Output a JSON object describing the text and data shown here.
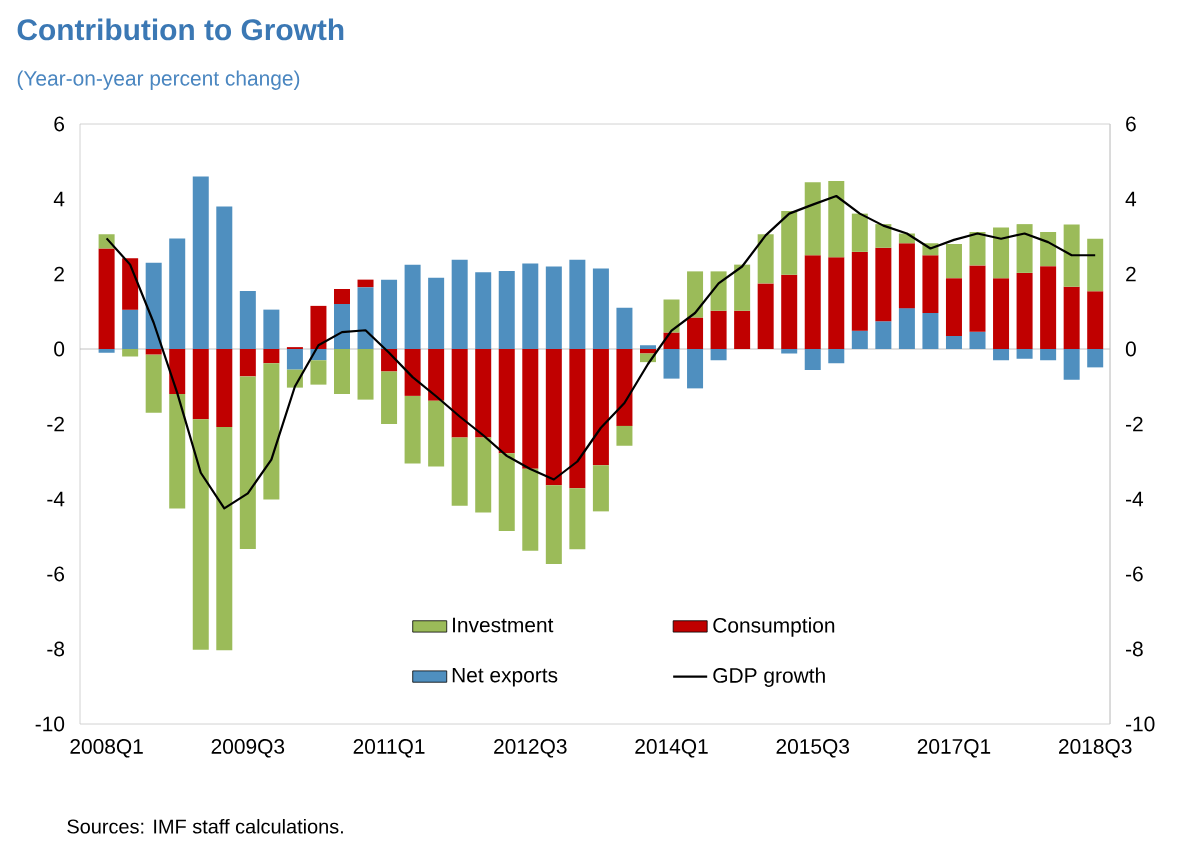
{
  "chart_data": {
    "type": "bar",
    "stacked": true,
    "title": "Contribution to Growth",
    "subtitle": "(Year-on-year percent change)",
    "categories": [
      "2008Q1",
      null,
      null,
      null,
      null,
      null,
      "2009Q3",
      null,
      null,
      null,
      null,
      null,
      "2011Q1",
      null,
      null,
      null,
      null,
      null,
      "2012Q3",
      null,
      null,
      null,
      null,
      null,
      "2014Q1",
      null,
      null,
      null,
      null,
      null,
      "2015Q3",
      null,
      null,
      null,
      null,
      null,
      "2017Q1",
      null,
      null,
      null,
      null,
      null,
      "2018Q3"
    ],
    "series": [
      {
        "name": "Net exports",
        "color": "#4f8fbf",
        "values": [
          -0.1,
          1.05,
          2.3,
          2.95,
          4.6,
          3.8,
          1.55,
          1.05,
          -0.55,
          -0.3,
          1.2,
          1.65,
          1.85,
          2.25,
          1.9,
          2.38,
          2.05,
          2.08,
          2.28,
          2.2,
          2.38,
          2.15,
          1.1,
          0.1,
          -0.79,
          -1.05,
          -0.3,
          0,
          0,
          -0.12,
          -0.56,
          -0.38,
          0.49,
          0.74,
          1.09,
          0.96,
          0.35,
          0.46,
          -0.3,
          -0.26,
          -0.3,
          -0.82,
          -0.49
        ]
      },
      {
        "name": "Consumption",
        "color": "#c00000",
        "values": [
          2.68,
          1.37,
          -0.15,
          -1.2,
          -1.87,
          -2.08,
          -0.73,
          -0.38,
          0.05,
          1.15,
          0.4,
          0.2,
          -0.6,
          -1.25,
          -1.38,
          -2.36,
          -2.36,
          -2.78,
          -3.19,
          -3.63,
          -3.71,
          -3.1,
          -2.05,
          -0.12,
          0.44,
          0.84,
          1.02,
          1.02,
          1.75,
          1.98,
          2.5,
          2.45,
          2.1,
          1.96,
          1.73,
          1.54,
          1.54,
          1.77,
          1.89,
          2.03,
          2.21,
          1.66,
          1.54
        ]
      },
      {
        "name": "Investment",
        "color": "#9bbb59",
        "values": [
          0.38,
          -0.2,
          -1.55,
          -3.05,
          -6.15,
          -5.95,
          -4.6,
          -3.63,
          -0.48,
          -0.65,
          -1.2,
          -1.35,
          -1.4,
          -1.8,
          -1.75,
          -1.82,
          -2.0,
          -2.07,
          -2.19,
          -2.1,
          -1.63,
          -1.23,
          -0.53,
          -0.23,
          0.88,
          1.23,
          1.05,
          1.23,
          1.31,
          1.7,
          1.95,
          2.03,
          1.02,
          0.63,
          0.26,
          0.32,
          0.91,
          0.89,
          1.35,
          1.3,
          0.91,
          1.66,
          1.4
        ]
      },
      {
        "name": "GDP growth",
        "type": "line",
        "color": "#000000",
        "values": [
          2.95,
          2.25,
          0.7,
          -1.17,
          -3.3,
          -4.25,
          -3.85,
          -2.95,
          -1.0,
          0.1,
          0.45,
          0.5,
          -0.1,
          -0.75,
          -1.26,
          -1.8,
          -2.3,
          -2.85,
          -3.2,
          -3.48,
          -3.0,
          -2.1,
          -1.44,
          -0.4,
          0.49,
          0.96,
          1.75,
          2.2,
          3.03,
          3.61,
          3.85,
          4.08,
          3.61,
          3.29,
          3.08,
          2.68,
          2.91,
          3.08,
          2.94,
          3.08,
          2.85,
          2.5,
          2.5
        ]
      }
    ],
    "ylim": [
      -10,
      6
    ],
    "yticks": [
      -10,
      -8,
      -6,
      -4,
      -2,
      0,
      2,
      4,
      6
    ],
    "y2lim": [
      -10,
      6
    ],
    "y2ticks": [
      -10,
      -8,
      -6,
      -4,
      -2,
      0,
      2,
      4,
      6
    ],
    "legend": "bottom",
    "annotations": [
      "Sources: IMF staff calculations."
    ]
  }
}
